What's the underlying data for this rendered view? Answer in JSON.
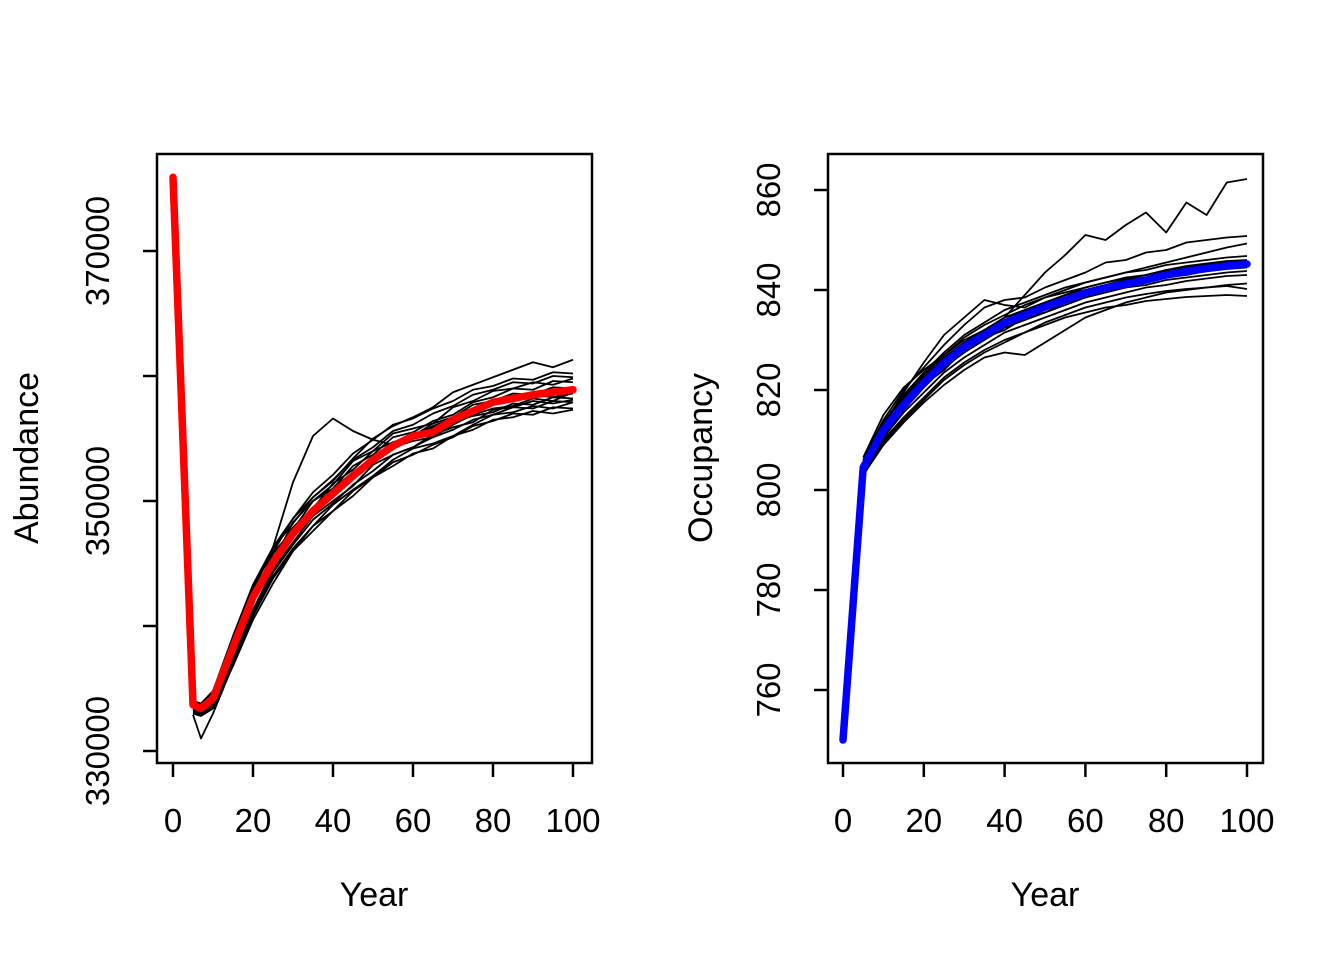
{
  "figure": {
    "background": "#ffffff",
    "description": "Two-panel population projection figure: simulated trajectories (thin black lines) with mean trajectory (thick colored line)"
  },
  "chart_data": [
    {
      "type": "line",
      "panel": "left",
      "title": "",
      "xlabel": "Year",
      "ylabel": "Abundance",
      "xlim": [
        0,
        100
      ],
      "ylim": [
        330000,
        377000
      ],
      "grid": false,
      "legend": "none",
      "y_unit_multiplier": 1000,
      "x_ticks": {
        "values": [
          0,
          20,
          40,
          60,
          80,
          100
        ],
        "labels": [
          "0",
          "20",
          "40",
          "60",
          "80",
          "100"
        ]
      },
      "y_ticks": {
        "values": [
          330,
          340,
          350,
          360,
          370
        ],
        "labels": [
          "330000",
          "",
          "350000",
          "",
          "370000"
        ]
      },
      "mean_series": {
        "name": "mean-abundance",
        "color": "#FF0000",
        "line_width": 7.5,
        "years": [
          0,
          5,
          7,
          10,
          15,
          20,
          25,
          30,
          35,
          40,
          45,
          50,
          55,
          60,
          65,
          70,
          75,
          80,
          85,
          90,
          95,
          100
        ],
        "values": [
          375.9,
          333.7,
          333.4,
          334.2,
          338.3,
          342.3,
          345.1,
          347.4,
          349.2,
          350.6,
          352.0,
          353.3,
          354.4,
          355.2,
          355.5,
          356.5,
          357.2,
          357.9,
          358.2,
          358.5,
          358.7,
          358.9
        ]
      },
      "sim_series": {
        "name": "abundance-simulations",
        "color": "#000000",
        "line_width": 1.8,
        "count": 16,
        "years": [
          5,
          7,
          10,
          15,
          20,
          25,
          30,
          35,
          40,
          45,
          50,
          55,
          60,
          65,
          70,
          75,
          80,
          85,
          90,
          95,
          100
        ],
        "lines": [
          [
            333.8,
            333.6,
            334.5,
            338.9,
            343.2,
            345.9,
            348.6,
            350.3,
            351.6,
            353.4,
            355.0,
            356.0,
            356.7,
            357.5,
            358.7,
            359.3,
            359.9,
            360.5,
            361.1,
            360.7,
            361.3
          ],
          [
            333.5,
            333.3,
            334.0,
            338.0,
            342.8,
            346.3,
            351.5,
            355.2,
            356.6,
            355.6,
            354.9,
            354.5,
            355.2,
            355.4,
            356.4,
            356.8,
            357.1,
            357.8,
            357.7,
            358.3,
            358.2
          ],
          [
            332.9,
            331.0,
            333.0,
            336.9,
            341.0,
            344.0,
            346.2,
            348.0,
            349.7,
            350.9,
            352.0,
            353.3,
            354.2,
            354.6,
            355.2,
            356.1,
            356.9,
            357.1,
            357.6,
            357.4,
            357.9
          ],
          [
            333.9,
            333.7,
            334.6,
            338.6,
            342.0,
            345.1,
            347.1,
            349.2,
            350.3,
            352.0,
            353.0,
            354.3,
            354.8,
            355.1,
            356.1,
            356.9,
            357.4,
            357.6,
            358.2,
            358.0,
            358.7
          ],
          [
            333.4,
            333.2,
            334.1,
            337.9,
            341.8,
            345.5,
            347.9,
            349.4,
            351.4,
            352.5,
            354.0,
            354.7,
            355.2,
            356.2,
            356.7,
            357.7,
            358.0,
            358.6,
            358.5,
            359.1,
            359.0
          ],
          [
            333.7,
            333.5,
            334.4,
            338.5,
            342.6,
            345.1,
            348.3,
            350.0,
            351.3,
            353.2,
            354.0,
            355.4,
            355.8,
            356.2,
            357.5,
            358.0,
            358.8,
            359.0,
            359.5,
            359.3,
            359.8
          ],
          [
            333.3,
            333.1,
            333.9,
            337.6,
            341.3,
            344.5,
            346.7,
            348.8,
            350.0,
            351.2,
            352.9,
            353.7,
            354.3,
            355.3,
            355.9,
            356.3,
            357.3,
            357.5,
            358.0,
            357.8,
            358.1
          ],
          [
            333.6,
            333.4,
            334.2,
            338.2,
            342.5,
            345.2,
            347.7,
            349.4,
            351.0,
            352.3,
            353.3,
            354.7,
            355.2,
            356.0,
            356.6,
            357.4,
            357.8,
            358.4,
            358.3,
            358.9,
            358.8
          ],
          [
            334.0,
            333.8,
            334.8,
            339.2,
            343.3,
            346.3,
            348.6,
            350.7,
            352.1,
            353.8,
            354.9,
            356.1,
            356.6,
            357.4,
            358.0,
            358.9,
            359.2,
            359.8,
            359.7,
            360.3,
            360.2
          ],
          [
            333.1,
            332.9,
            333.6,
            337.2,
            340.8,
            343.8,
            346.0,
            348.0,
            349.2,
            350.8,
            351.9,
            353.1,
            353.7,
            354.5,
            355.1,
            356.0,
            356.4,
            357.0,
            356.9,
            357.5,
            357.4
          ],
          [
            333.0,
            332.8,
            333.4,
            336.8,
            340.5,
            343.4,
            346.0,
            347.6,
            349.2,
            350.4,
            351.9,
            352.8,
            353.8,
            354.2,
            355.2,
            355.7,
            356.5,
            356.7,
            357.2,
            357.0,
            357.3
          ],
          [
            333.7,
            333.5,
            334.3,
            338.7,
            342.5,
            345.8,
            347.7,
            350.0,
            351.0,
            352.8,
            353.7,
            355.1,
            355.5,
            356.4,
            356.9,
            357.9,
            358.3,
            359.0,
            358.9,
            359.6,
            359.5
          ],
          [
            333.4,
            333.1,
            334.0,
            338.1,
            342.1,
            344.7,
            347.4,
            349.1,
            350.7,
            352.0,
            353.4,
            354.2,
            355.2,
            355.6,
            356.5,
            357.0,
            357.8,
            358.0,
            358.5,
            358.3,
            358.6
          ],
          [
            333.8,
            333.6,
            334.6,
            339.0,
            343.1,
            346.2,
            348.2,
            350.3,
            351.7,
            353.3,
            354.3,
            355.6,
            356.1,
            357.0,
            357.6,
            358.5,
            358.9,
            359.5,
            359.4,
            360.0,
            359.9
          ],
          [
            333.2,
            333.0,
            333.8,
            337.4,
            341.1,
            344.3,
            346.5,
            348.5,
            349.8,
            351.3,
            352.4,
            353.7,
            354.3,
            355.1,
            355.7,
            356.5,
            356.9,
            357.5,
            357.4,
            358.0,
            357.9
          ],
          [
            333.6,
            333.3,
            334.1,
            338.4,
            342.2,
            345.2,
            347.3,
            349.5,
            350.7,
            352.3,
            353.4,
            354.6,
            355.1,
            355.9,
            356.5,
            357.3,
            357.7,
            358.3,
            358.2,
            358.8,
            358.7
          ]
        ]
      }
    },
    {
      "type": "line",
      "panel": "right",
      "title": "",
      "xlabel": "Year",
      "ylabel": "Occupancy",
      "xlim": [
        0,
        100
      ],
      "ylim": [
        750,
        863
      ],
      "grid": false,
      "legend": "none",
      "y_unit_multiplier": 1,
      "x_ticks": {
        "values": [
          0,
          20,
          40,
          60,
          80,
          100
        ],
        "labels": [
          "0",
          "20",
          "40",
          "60",
          "80",
          "100"
        ]
      },
      "y_ticks": {
        "values": [
          760,
          780,
          800,
          820,
          840,
          860
        ],
        "labels": [
          "760",
          "780",
          "800",
          "820",
          "840",
          "860"
        ]
      },
      "mean_series": {
        "name": "mean-occupancy",
        "color": "#0000FF",
        "line_width": 7.5,
        "years": [
          0,
          5,
          10,
          15,
          20,
          25,
          30,
          35,
          40,
          45,
          50,
          55,
          60,
          65,
          70,
          75,
          80,
          85,
          90,
          95,
          100
        ],
        "values": [
          750,
          804.5,
          812,
          817,
          821.4,
          825.4,
          828.6,
          831,
          833.4,
          835,
          836.6,
          838,
          839.4,
          840.4,
          841.2,
          842,
          843,
          843.7,
          844.3,
          844.8,
          845.2
        ]
      },
      "sim_series": {
        "name": "occupancy-simulations",
        "color": "#000000",
        "line_width": 1.8,
        "count": 16,
        "years": [
          5,
          10,
          15,
          20,
          25,
          30,
          35,
          40,
          45,
          50,
          55,
          60,
          65,
          70,
          75,
          80,
          85,
          90,
          95,
          100
        ],
        "lines": [
          [
            805,
            812.5,
            818,
            822,
            826,
            829.5,
            832,
            834.5,
            839,
            843.5,
            847,
            851,
            850,
            853,
            855.5,
            851.5,
            857.5,
            855,
            861.5,
            862.2
          ],
          [
            806,
            814,
            820,
            824.5,
            829,
            833,
            836.5,
            838,
            838.5,
            840.5,
            842,
            843.5,
            845.5,
            846,
            847.5,
            848,
            849.5,
            850,
            850.5,
            850.8
          ],
          [
            805.5,
            813,
            819.5,
            825.5,
            831,
            834.5,
            838,
            837,
            836.5,
            838.5,
            839.5,
            840.5,
            841.5,
            842.5,
            843,
            844,
            844.5,
            845,
            845.5,
            845.8
          ],
          [
            803,
            809,
            813.5,
            817.5,
            821,
            824,
            826.5,
            827.5,
            827,
            829.5,
            832,
            834.5,
            836,
            837.5,
            838.5,
            839.5,
            840,
            840.5,
            841,
            841.3
          ],
          [
            803.5,
            810,
            814.5,
            818.5,
            822.5,
            825.5,
            828,
            830,
            831.5,
            833,
            834.5,
            835.5,
            836.5,
            837,
            837.8,
            838.2,
            838.6,
            838.8,
            839,
            838.8
          ],
          [
            804,
            811,
            816,
            820.5,
            824.5,
            827.5,
            830,
            832.5,
            834,
            835.5,
            837,
            838.5,
            839.5,
            840.5,
            841,
            842,
            842.5,
            843,
            843.5,
            843.8
          ],
          [
            805,
            813.5,
            819,
            823.5,
            827.5,
            831,
            833.5,
            836,
            837.5,
            839,
            840.5,
            841.5,
            842.5,
            843.5,
            844,
            845,
            845.5,
            846,
            846.5,
            846.8
          ],
          [
            804.5,
            812,
            817.5,
            822,
            826,
            829,
            831.5,
            834,
            835.5,
            837,
            838.5,
            840,
            841,
            842,
            842.5,
            843.5,
            844,
            844.5,
            845,
            845.3
          ],
          [
            805.5,
            811.5,
            816.5,
            821,
            824,
            828,
            830.5,
            832,
            834.5,
            835.5,
            837.5,
            838.5,
            840,
            840.5,
            841.5,
            842.5,
            843,
            843.8,
            844.2,
            844.5
          ],
          [
            806.5,
            815,
            820.5,
            824,
            827,
            830,
            832,
            834,
            836,
            837.5,
            839,
            840,
            841,
            842,
            843,
            843.8,
            844.3,
            844.8,
            845.2,
            845.5
          ],
          [
            803.5,
            810.5,
            815.5,
            819.5,
            823.5,
            826.5,
            829,
            831.5,
            833,
            834.5,
            836,
            837.5,
            838.5,
            839.5,
            840.5,
            841,
            841.8,
            842.3,
            842.8,
            843
          ],
          [
            804,
            812,
            816.5,
            821.5,
            825,
            828,
            830.5,
            833,
            834.5,
            836.5,
            837.5,
            839,
            840,
            841,
            842,
            842.8,
            843.3,
            843.8,
            844.3,
            844.6
          ],
          [
            805,
            813,
            818.5,
            823,
            827,
            830.5,
            833,
            835,
            837,
            838.5,
            840,
            841.5,
            842.5,
            843.5,
            844.5,
            845.5,
            846.5,
            847.5,
            848.5,
            849.3
          ],
          [
            804,
            811.5,
            817,
            821,
            825,
            828.5,
            831,
            833,
            835,
            836.5,
            838,
            839,
            840.5,
            841.5,
            842.3,
            843.2,
            843.8,
            844.5,
            845,
            845.2
          ],
          [
            803,
            809.5,
            814,
            818,
            822,
            825,
            827.5,
            829.5,
            831.5,
            833.5,
            835,
            836.5,
            837.5,
            838.5,
            839.2,
            839.8,
            840.2,
            840.5,
            840.8,
            840.2
          ],
          [
            805,
            812.5,
            818,
            822.5,
            826.5,
            829.5,
            832,
            834.5,
            836,
            837.5,
            839,
            840.5,
            841.5,
            842.3,
            843,
            844,
            844.8,
            845.3,
            845.8,
            846
          ]
        ]
      }
    }
  ]
}
